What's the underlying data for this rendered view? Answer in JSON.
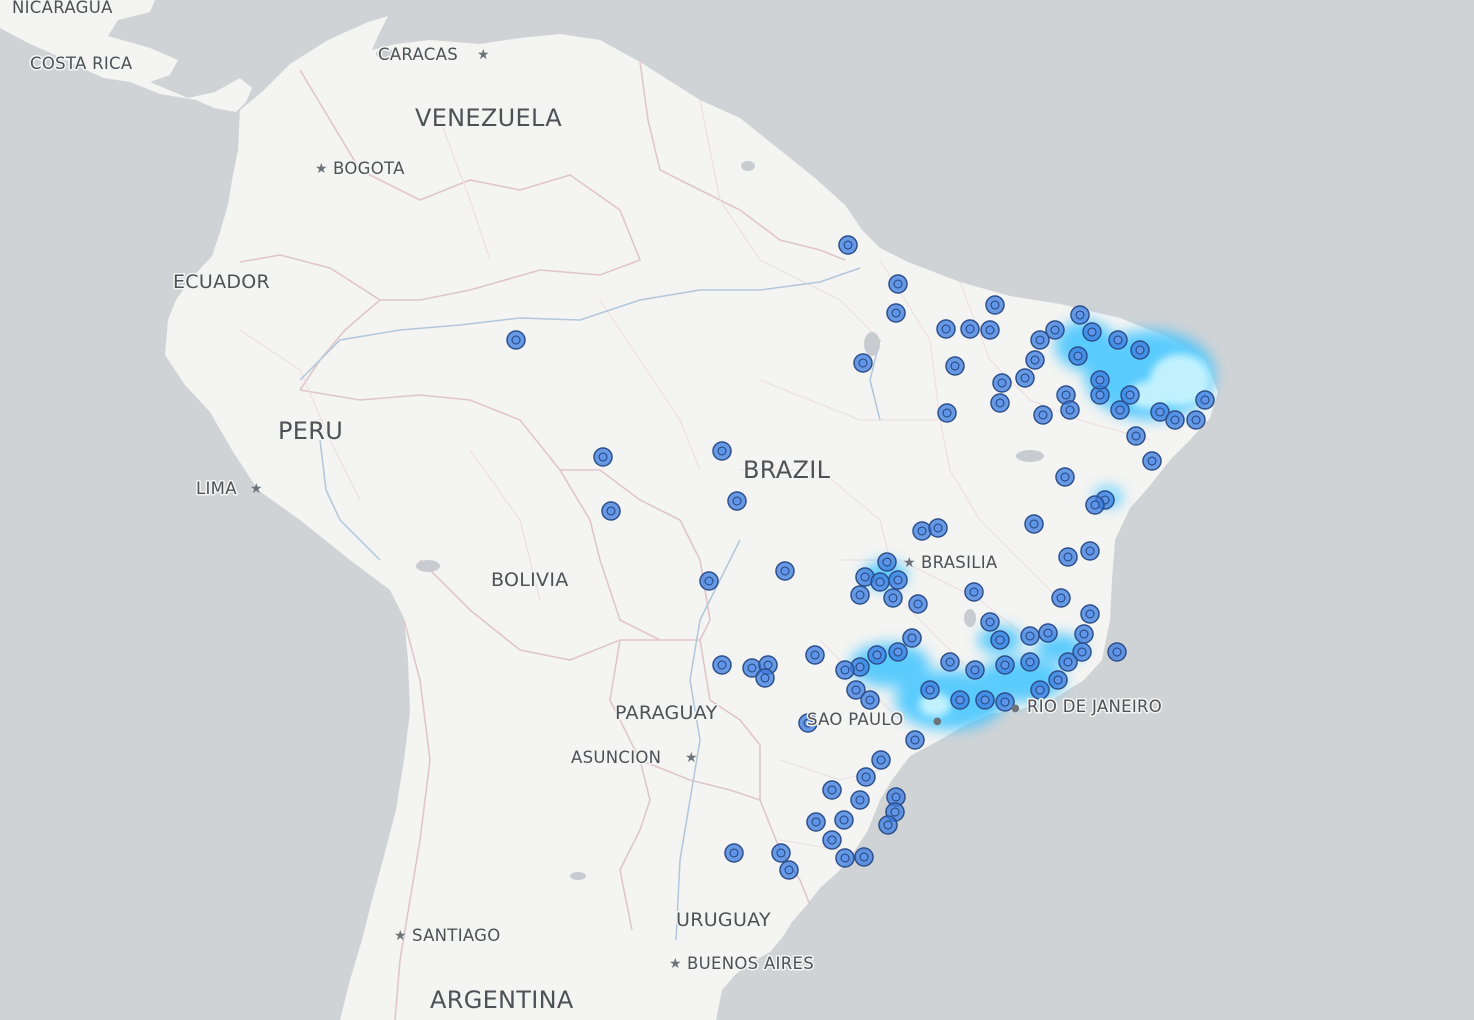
{
  "map": {
    "country_labels": {
      "nicaragua": "NICARAGUA",
      "costa_rica": "COSTA RICA",
      "venezuela": "VENEZUELA",
      "ecuador": "ECUADOR",
      "peru": "PERU",
      "brazil": "BRAZIL",
      "bolivia": "BOLIVIA",
      "paraguay": "PARAGUAY",
      "uruguay": "URUGUAY",
      "argentina": "ARGENTINA"
    },
    "capital_labels": {
      "caracas": "CARACAS",
      "bogota": "BOGOTA",
      "lima": "LIMA",
      "brasilia": "BRASILIA",
      "asuncion": "ASUNCION",
      "santiago": "SANTIAGO",
      "buenos_aires": "BUENOS AIRES"
    },
    "city_labels": {
      "sao_paulo": "SAO PAULO",
      "rio_de_janeiro": "RIO DE JANEIRO"
    },
    "symbols": {
      "capital": "★",
      "city": "●"
    },
    "colors": {
      "ocean": "#d0d3d6",
      "land": "#f4f4f2",
      "border": "#e3c9cc",
      "river": "#a9bfd8",
      "point_fill": "#3a7be0",
      "point_stroke": "#2d4f8a",
      "heat_hot": "#c8f4ff",
      "heat_mid": "#42c8ff"
    }
  }
}
